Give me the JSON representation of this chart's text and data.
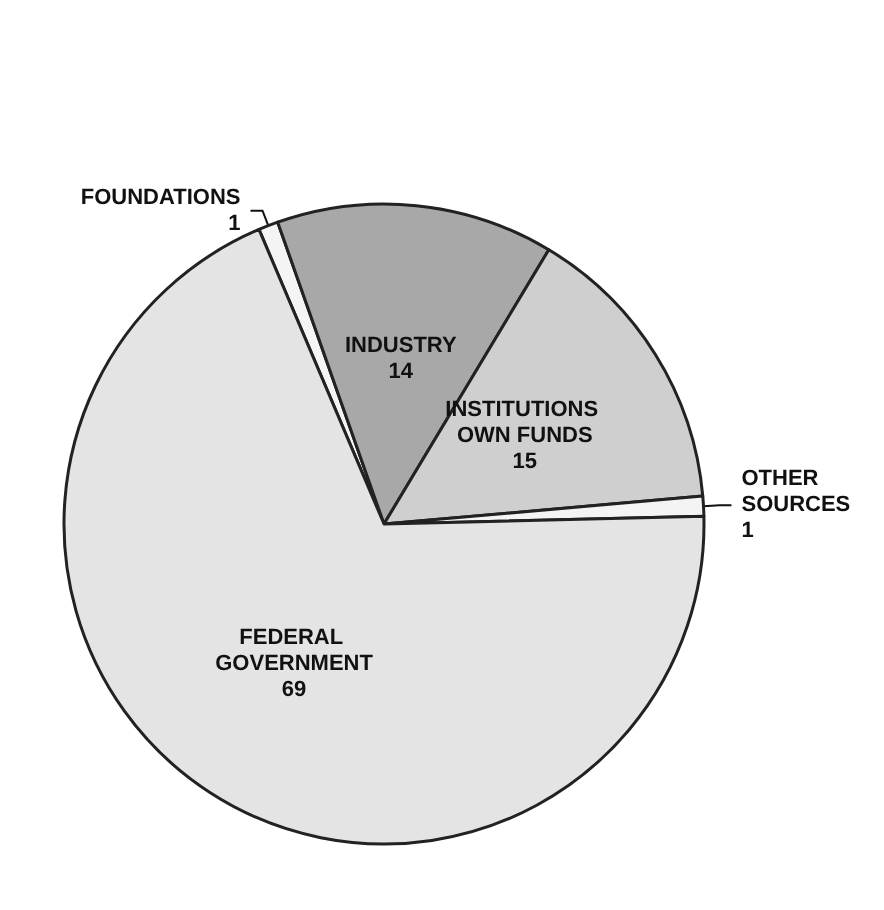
{
  "chart_data": {
    "type": "pie",
    "categories": [
      "FOUNDATIONS",
      "INDUSTRY",
      "INSTITUTIONS OWN FUNDS",
      "OTHER SOURCES",
      "FEDERAL GOVERNMENT"
    ],
    "values": [
      1,
      14,
      15,
      1,
      69
    ],
    "colors": [
      "#f4f4f4",
      "#a8a8a8",
      "#cfcfcf",
      "#f4f4f4",
      "#e4e4e4"
    ],
    "data_labels": true,
    "legend": false
  }
}
